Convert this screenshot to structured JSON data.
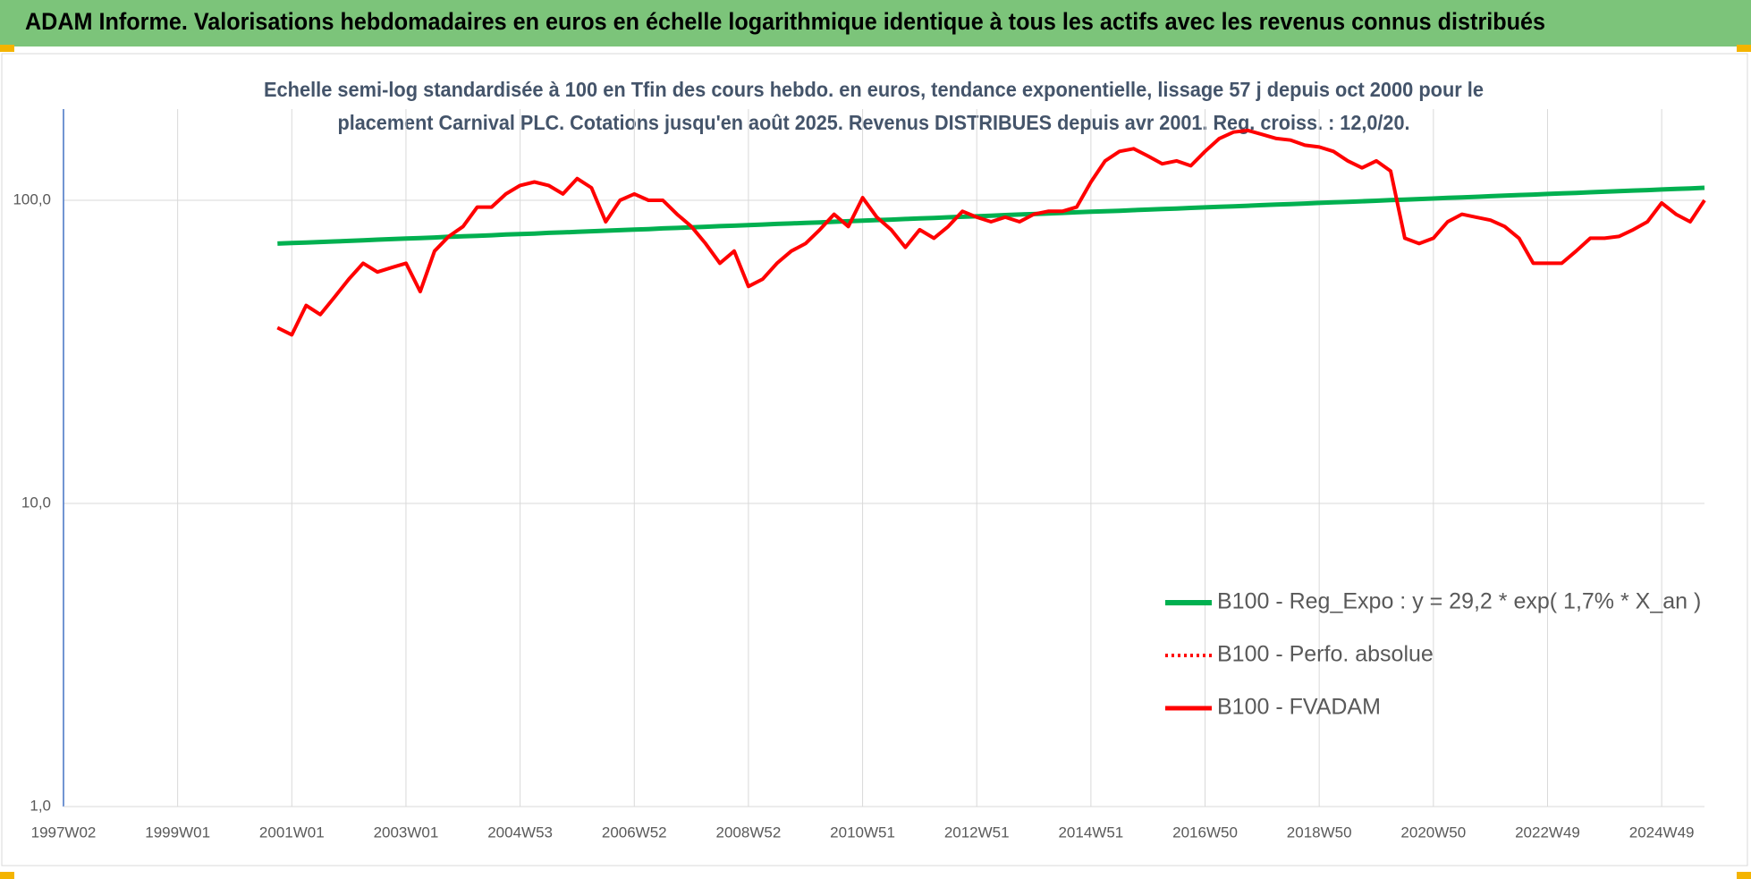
{
  "chart_data": {
    "type": "line",
    "header": "ADAM Informe. Valorisations hebdomadaires en euros en échelle logarithmique identique à tous les actifs avec les revenus connus distribués",
    "subtitle": [
      "Echelle semi-log standardisée à 100 en Tfin des cours hebdo. en euros, tendance exponentielle, lissage 57 j depuis oct 2000 pour le",
      "placement Carnival PLC. Cotations jusqu'en août 2025. Revenus DISTRIBUES depuis avr 2001. Reg. croiss. : 12,0/20."
    ],
    "log_scale": true,
    "grid": true,
    "legend": "lower right",
    "ylim": [
      1,
      200
    ],
    "yticks": [
      {
        "value": 1,
        "label": "1,0"
      },
      {
        "value": 10,
        "label": "10,0"
      },
      {
        "value": 100,
        "label": "100,0"
      }
    ],
    "categories": [
      "1997W02",
      null,
      null,
      null,
      null,
      null,
      null,
      null,
      "1999W01",
      null,
      null,
      null,
      null,
      null,
      null,
      null,
      "2001W01",
      null,
      null,
      null,
      null,
      null,
      null,
      null,
      "2003W01",
      null,
      null,
      null,
      null,
      null,
      null,
      null,
      "2004W53",
      null,
      null,
      null,
      null,
      null,
      null,
      null,
      "2006W52",
      null,
      null,
      null,
      null,
      null,
      null,
      null,
      "2008W52",
      null,
      null,
      null,
      null,
      null,
      null,
      null,
      "2010W51",
      null,
      null,
      null,
      null,
      null,
      null,
      null,
      "2012W51",
      null,
      null,
      null,
      null,
      null,
      null,
      null,
      "2014W51",
      null,
      null,
      null,
      null,
      null,
      null,
      null,
      "2016W50",
      null,
      null,
      null,
      null,
      null,
      null,
      null,
      "2018W50",
      null,
      null,
      null,
      null,
      null,
      null,
      null,
      "2020W50",
      null,
      null,
      null,
      null,
      null,
      null,
      null,
      "2022W49",
      null,
      null,
      null,
      null,
      null,
      null,
      null,
      "2024W49",
      null,
      null,
      null
    ],
    "series": [
      {
        "name": "B100 - Reg_Expo : y = 29,2 * exp( 1,7% *  X_an )",
        "color": "#00b050",
        "style": "solid",
        "width": 5,
        "values": [
          null,
          null,
          null,
          null,
          null,
          null,
          null,
          null,
          null,
          null,
          null,
          null,
          null,
          null,
          null,
          72.0,
          72.3,
          72.6,
          72.9,
          73.2,
          73.5,
          73.8,
          74.2,
          74.5,
          74.8,
          75.1,
          75.4,
          75.8,
          76.1,
          76.4,
          76.7,
          77.1,
          77.4,
          77.7,
          78.1,
          78.4,
          78.7,
          79.1,
          79.4,
          79.7,
          80.1,
          80.4,
          80.8,
          81.1,
          81.5,
          81.8,
          82.2,
          82.5,
          82.9,
          83.2,
          83.6,
          83.9,
          84.3,
          84.6,
          85.0,
          85.3,
          85.7,
          86.1,
          86.4,
          86.8,
          87.2,
          87.5,
          87.9,
          88.3,
          88.6,
          89.0,
          89.4,
          89.8,
          90.1,
          90.5,
          90.9,
          91.3,
          91.7,
          92.0,
          92.4,
          92.8,
          93.2,
          93.6,
          94.0,
          94.4,
          94.8,
          95.2,
          95.6,
          96.0,
          96.4,
          96.8,
          97.2,
          97.6,
          98.1,
          98.5,
          98.9,
          99.3,
          99.7,
          100.2,
          100.6,
          101.0,
          101.4,
          101.9,
          102.3,
          102.7,
          103.2,
          103.6,
          104.1,
          104.5,
          105.0,
          105.4,
          105.8,
          106.3,
          106.8,
          107.2,
          107.7,
          108.1,
          108.6,
          109.1,
          109.5,
          110.0
        ]
      },
      {
        "name": "B100 - Perfo. absolue",
        "color": "#ff0000",
        "style": "dotted",
        "width": 3,
        "values": [
          null,
          null,
          null,
          null,
          null,
          null,
          null,
          null,
          null,
          null,
          null,
          null,
          null,
          null,
          null,
          38,
          36,
          45,
          42,
          48,
          55,
          62,
          58,
          60,
          62,
          50,
          68,
          76,
          82,
          95,
          95,
          105,
          112,
          115,
          112,
          105,
          118,
          110,
          85,
          100,
          105,
          100,
          100,
          90,
          82,
          72,
          62,
          68,
          52,
          55,
          62,
          68,
          72,
          80,
          90,
          82,
          102,
          88,
          80,
          70,
          80,
          75,
          82,
          92,
          88,
          85,
          88,
          85,
          90,
          92,
          92,
          95,
          115,
          135,
          145,
          148,
          140,
          132,
          135,
          130,
          145,
          160,
          168,
          170,
          165,
          160,
          158,
          152,
          150,
          145,
          135,
          128,
          135,
          125,
          75,
          72,
          75,
          85,
          90,
          88,
          86,
          82,
          75,
          62,
          62,
          62,
          68,
          75,
          75,
          76,
          80,
          85,
          98,
          90,
          85,
          100
        ]
      },
      {
        "name": "B100 - FVADAM",
        "color": "#ff0000",
        "style": "solid",
        "width": 4,
        "values": [
          null,
          null,
          null,
          null,
          null,
          null,
          null,
          null,
          null,
          null,
          null,
          null,
          null,
          null,
          null,
          38,
          36,
          45,
          42,
          48,
          55,
          62,
          58,
          60,
          62,
          50,
          68,
          76,
          82,
          95,
          95,
          105,
          112,
          115,
          112,
          105,
          118,
          110,
          85,
          100,
          105,
          100,
          100,
          90,
          82,
          72,
          62,
          68,
          52,
          55,
          62,
          68,
          72,
          80,
          90,
          82,
          102,
          88,
          80,
          70,
          80,
          75,
          82,
          92,
          88,
          85,
          88,
          85,
          90,
          92,
          92,
          95,
          115,
          135,
          145,
          148,
          140,
          132,
          135,
          130,
          145,
          160,
          168,
          170,
          165,
          160,
          158,
          152,
          150,
          145,
          135,
          128,
          135,
          125,
          75,
          72,
          75,
          85,
          90,
          88,
          86,
          82,
          75,
          62,
          62,
          62,
          68,
          75,
          75,
          76,
          80,
          85,
          98,
          90,
          85,
          100
        ]
      }
    ]
  }
}
